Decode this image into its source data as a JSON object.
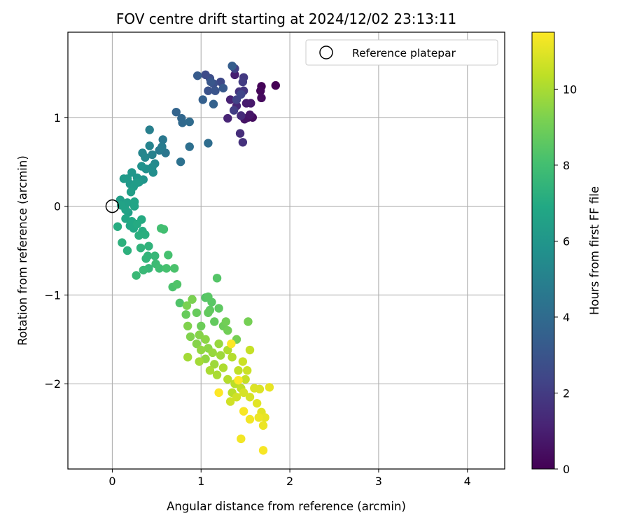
{
  "chart_data": {
    "type": "scatter",
    "title": "FOV centre drift starting at 2024/12/02 23:13:11",
    "xlabel": "Angular distance from reference (arcmin)",
    "ylabel": "Rotation from reference (arcmin)",
    "xlim": [
      -0.5,
      4.42
    ],
    "ylim": [
      -2.96,
      1.96
    ],
    "x_ticks": [
      0,
      1,
      2,
      3,
      4
    ],
    "x_tick_labels": [
      "0",
      "1",
      "2",
      "3",
      "4"
    ],
    "y_ticks": [
      -2,
      -1,
      0,
      1
    ],
    "y_tick_labels": [
      "−2",
      "−1",
      "0",
      "1"
    ],
    "grid": true,
    "legend": {
      "placement": "top-right",
      "entries": [
        "Reference platepar"
      ]
    },
    "reference_point": {
      "x": 0,
      "y": 0,
      "label": "Reference platepar"
    },
    "colorbar": {
      "label": "Hours from first FF file",
      "colormap": "viridis",
      "range": [
        0,
        11.5
      ],
      "ticks": [
        0,
        2,
        4,
        6,
        8,
        10
      ],
      "tick_labels": [
        "0",
        "2",
        "4",
        "6",
        "8",
        "10"
      ]
    },
    "series": [
      {
        "points": [
          [
            1.84,
            1.36,
            0.0
          ],
          [
            1.68,
            1.35,
            0.1
          ],
          [
            1.67,
            1.3,
            0.2
          ],
          [
            1.68,
            1.22,
            0.3
          ],
          [
            1.58,
            1.0,
            0.4
          ],
          [
            1.53,
            1.0,
            0.5
          ],
          [
            1.49,
            0.98,
            0.6
          ],
          [
            1.55,
            1.03,
            0.7
          ],
          [
            1.56,
            1.16,
            0.8
          ],
          [
            1.51,
            1.16,
            0.9
          ],
          [
            1.38,
            1.48,
            1.0
          ],
          [
            1.33,
            1.2,
            1.1
          ],
          [
            1.3,
            0.99,
            1.2
          ],
          [
            1.4,
            1.13,
            1.3
          ],
          [
            1.45,
            1.02,
            1.4
          ],
          [
            1.44,
            0.82,
            1.5
          ],
          [
            1.47,
            0.72,
            1.6
          ],
          [
            1.43,
            1.29,
            1.7
          ],
          [
            1.48,
            1.3,
            1.8
          ],
          [
            1.48,
            1.45,
            1.9
          ],
          [
            1.47,
            1.4,
            2.0
          ],
          [
            1.37,
            1.08,
            2.1
          ],
          [
            1.38,
            1.55,
            2.2
          ],
          [
            1.4,
            1.2,
            2.3
          ],
          [
            1.45,
            1.26,
            2.4
          ],
          [
            1.22,
            1.4,
            2.5
          ],
          [
            1.05,
            1.48,
            2.6
          ],
          [
            1.1,
            1.44,
            2.7
          ],
          [
            1.14,
            1.38,
            2.8
          ],
          [
            1.08,
            1.3,
            2.9
          ],
          [
            1.16,
            1.3,
            3.0
          ],
          [
            1.11,
            1.4,
            3.1
          ],
          [
            1.25,
            1.33,
            3.2
          ],
          [
            0.96,
            1.47,
            3.3
          ],
          [
            1.35,
            1.58,
            3.4
          ],
          [
            1.02,
            1.2,
            3.5
          ],
          [
            1.14,
            1.15,
            3.6
          ],
          [
            0.72,
            1.06,
            3.7
          ],
          [
            0.78,
            0.99,
            3.8
          ],
          [
            0.79,
            0.94,
            3.9
          ],
          [
            0.87,
            0.95,
            4.0
          ],
          [
            1.08,
            0.71,
            4.1
          ],
          [
            0.87,
            0.67,
            4.2
          ],
          [
            0.77,
            0.5,
            4.3
          ],
          [
            0.6,
            0.6,
            4.5
          ],
          [
            0.57,
            0.75,
            4.6
          ],
          [
            0.53,
            0.63,
            4.7
          ],
          [
            0.56,
            0.67,
            4.8
          ],
          [
            0.42,
            0.86,
            4.9
          ],
          [
            0.45,
            0.58,
            5.0
          ],
          [
            0.42,
            0.68,
            5.1
          ],
          [
            0.34,
            0.6,
            5.2
          ],
          [
            0.37,
            0.55,
            5.3
          ],
          [
            0.48,
            0.48,
            5.4
          ],
          [
            0.45,
            0.44,
            5.5
          ],
          [
            0.46,
            0.38,
            5.6
          ],
          [
            0.38,
            0.42,
            5.7
          ],
          [
            0.33,
            0.45,
            5.8
          ],
          [
            0.35,
            0.3,
            5.9
          ],
          [
            0.22,
            0.38,
            6.0
          ],
          [
            0.28,
            0.32,
            6.0
          ],
          [
            0.3,
            0.27,
            6.1
          ],
          [
            0.2,
            0.25,
            6.1
          ],
          [
            0.13,
            0.31,
            6.2
          ],
          [
            0.17,
            0.31,
            6.2
          ],
          [
            0.27,
            0.26,
            6.3
          ],
          [
            0.24,
            0.22,
            6.3
          ],
          [
            0.21,
            0.16,
            6.4
          ],
          [
            0.09,
            0.07,
            6.4
          ],
          [
            0.17,
            0.04,
            6.5
          ],
          [
            0.18,
            -0.07,
            6.5
          ],
          [
            0.1,
            0.01,
            6.6
          ],
          [
            0.15,
            -0.04,
            6.6
          ],
          [
            0.25,
            0.05,
            6.7
          ],
          [
            0.25,
            0.0,
            6.7
          ],
          [
            0.15,
            -0.14,
            6.8
          ],
          [
            0.2,
            -0.22,
            6.8
          ],
          [
            0.24,
            -0.25,
            6.9
          ],
          [
            0.22,
            -0.17,
            6.9
          ],
          [
            0.33,
            -0.15,
            7.0
          ],
          [
            0.28,
            -0.2,
            7.0
          ],
          [
            0.06,
            -0.23,
            7.1
          ],
          [
            0.34,
            -0.28,
            7.1
          ],
          [
            0.3,
            -0.33,
            7.2
          ],
          [
            0.37,
            -0.32,
            7.2
          ],
          [
            0.11,
            -0.41,
            7.3
          ],
          [
            0.17,
            -0.5,
            7.3
          ],
          [
            0.32,
            -0.47,
            7.4
          ],
          [
            0.41,
            -0.45,
            7.4
          ],
          [
            0.4,
            -0.56,
            7.5
          ],
          [
            0.38,
            -0.59,
            7.5
          ],
          [
            0.48,
            -0.56,
            7.6
          ],
          [
            0.41,
            -0.7,
            7.6
          ],
          [
            0.35,
            -0.72,
            7.7
          ],
          [
            0.27,
            -0.78,
            7.7
          ],
          [
            0.49,
            -0.65,
            7.8
          ],
          [
            0.53,
            -0.7,
            7.9
          ],
          [
            0.58,
            -0.26,
            8.0
          ],
          [
            0.55,
            -0.25,
            8.0
          ],
          [
            0.63,
            -0.55,
            8.1
          ],
          [
            0.61,
            -0.7,
            8.1
          ],
          [
            0.7,
            -0.7,
            8.2
          ],
          [
            0.68,
            -0.91,
            8.2
          ],
          [
            0.73,
            -0.88,
            8.3
          ],
          [
            0.76,
            -1.09,
            8.3
          ],
          [
            1.18,
            -0.81,
            8.4
          ],
          [
            1.05,
            -1.03,
            8.4
          ],
          [
            1.08,
            -1.02,
            8.5
          ],
          [
            1.12,
            -1.08,
            8.5
          ],
          [
            1.2,
            -1.15,
            8.6
          ],
          [
            1.1,
            -1.17,
            8.6
          ],
          [
            1.08,
            -1.2,
            8.7
          ],
          [
            1.15,
            -1.3,
            8.7
          ],
          [
            0.83,
            -1.22,
            8.8
          ],
          [
            0.95,
            -1.2,
            8.8
          ],
          [
            1.0,
            -1.35,
            8.9
          ],
          [
            1.25,
            -1.35,
            8.9
          ],
          [
            1.28,
            -1.3,
            9.0
          ],
          [
            1.3,
            -1.4,
            9.0
          ],
          [
            1.4,
            -1.5,
            9.1
          ],
          [
            1.53,
            -1.3,
            9.1
          ],
          [
            0.84,
            -1.12,
            9.2
          ],
          [
            0.9,
            -1.05,
            9.2
          ],
          [
            0.85,
            -1.35,
            9.3
          ],
          [
            0.88,
            -1.47,
            9.3
          ],
          [
            0.95,
            -1.55,
            9.4
          ],
          [
            0.98,
            -1.45,
            9.4
          ],
          [
            1.05,
            -1.5,
            9.5
          ],
          [
            1.08,
            -1.6,
            9.5
          ],
          [
            1.0,
            -1.62,
            9.6
          ],
          [
            1.05,
            -1.72,
            9.6
          ],
          [
            1.13,
            -1.65,
            9.7
          ],
          [
            1.2,
            -1.55,
            9.7
          ],
          [
            1.15,
            -1.78,
            9.8
          ],
          [
            1.22,
            -1.68,
            9.8
          ],
          [
            0.85,
            -1.7,
            9.9
          ],
          [
            0.98,
            -1.75,
            9.9
          ],
          [
            1.1,
            -1.85,
            10.0
          ],
          [
            1.18,
            -1.9,
            10.0
          ],
          [
            1.25,
            -1.82,
            10.1
          ],
          [
            1.3,
            -1.62,
            10.1
          ],
          [
            1.35,
            -1.7,
            10.2
          ],
          [
            1.3,
            -1.95,
            10.2
          ],
          [
            1.38,
            -2.0,
            10.3
          ],
          [
            1.35,
            -2.1,
            10.3
          ],
          [
            1.42,
            -1.85,
            10.4
          ],
          [
            1.45,
            -2.05,
            10.4
          ],
          [
            1.5,
            -1.95,
            10.5
          ],
          [
            1.55,
            -1.62,
            10.5
          ],
          [
            1.47,
            -1.75,
            10.6
          ],
          [
            1.52,
            -1.85,
            10.6
          ],
          [
            1.4,
            -2.15,
            10.7
          ],
          [
            1.33,
            -2.2,
            10.7
          ],
          [
            1.48,
            -2.1,
            10.8
          ],
          [
            1.55,
            -2.15,
            10.8
          ],
          [
            1.6,
            -2.05,
            10.9
          ],
          [
            1.66,
            -2.06,
            10.9
          ],
          [
            1.63,
            -2.22,
            11.0
          ],
          [
            1.68,
            -2.32,
            11.0
          ],
          [
            1.72,
            -2.38,
            11.1
          ],
          [
            1.77,
            -2.04,
            11.1
          ],
          [
            1.7,
            -2.47,
            11.2
          ],
          [
            1.65,
            -2.38,
            11.2
          ],
          [
            1.55,
            -2.4,
            11.3
          ],
          [
            1.45,
            -2.62,
            11.3
          ],
          [
            1.7,
            -2.75,
            11.4
          ],
          [
            1.48,
            -2.31,
            11.4
          ],
          [
            1.34,
            -1.55,
            11.5
          ],
          [
            1.2,
            -2.1,
            11.5
          ],
          [
            1.42,
            -1.96,
            11.5
          ]
        ]
      }
    ]
  }
}
